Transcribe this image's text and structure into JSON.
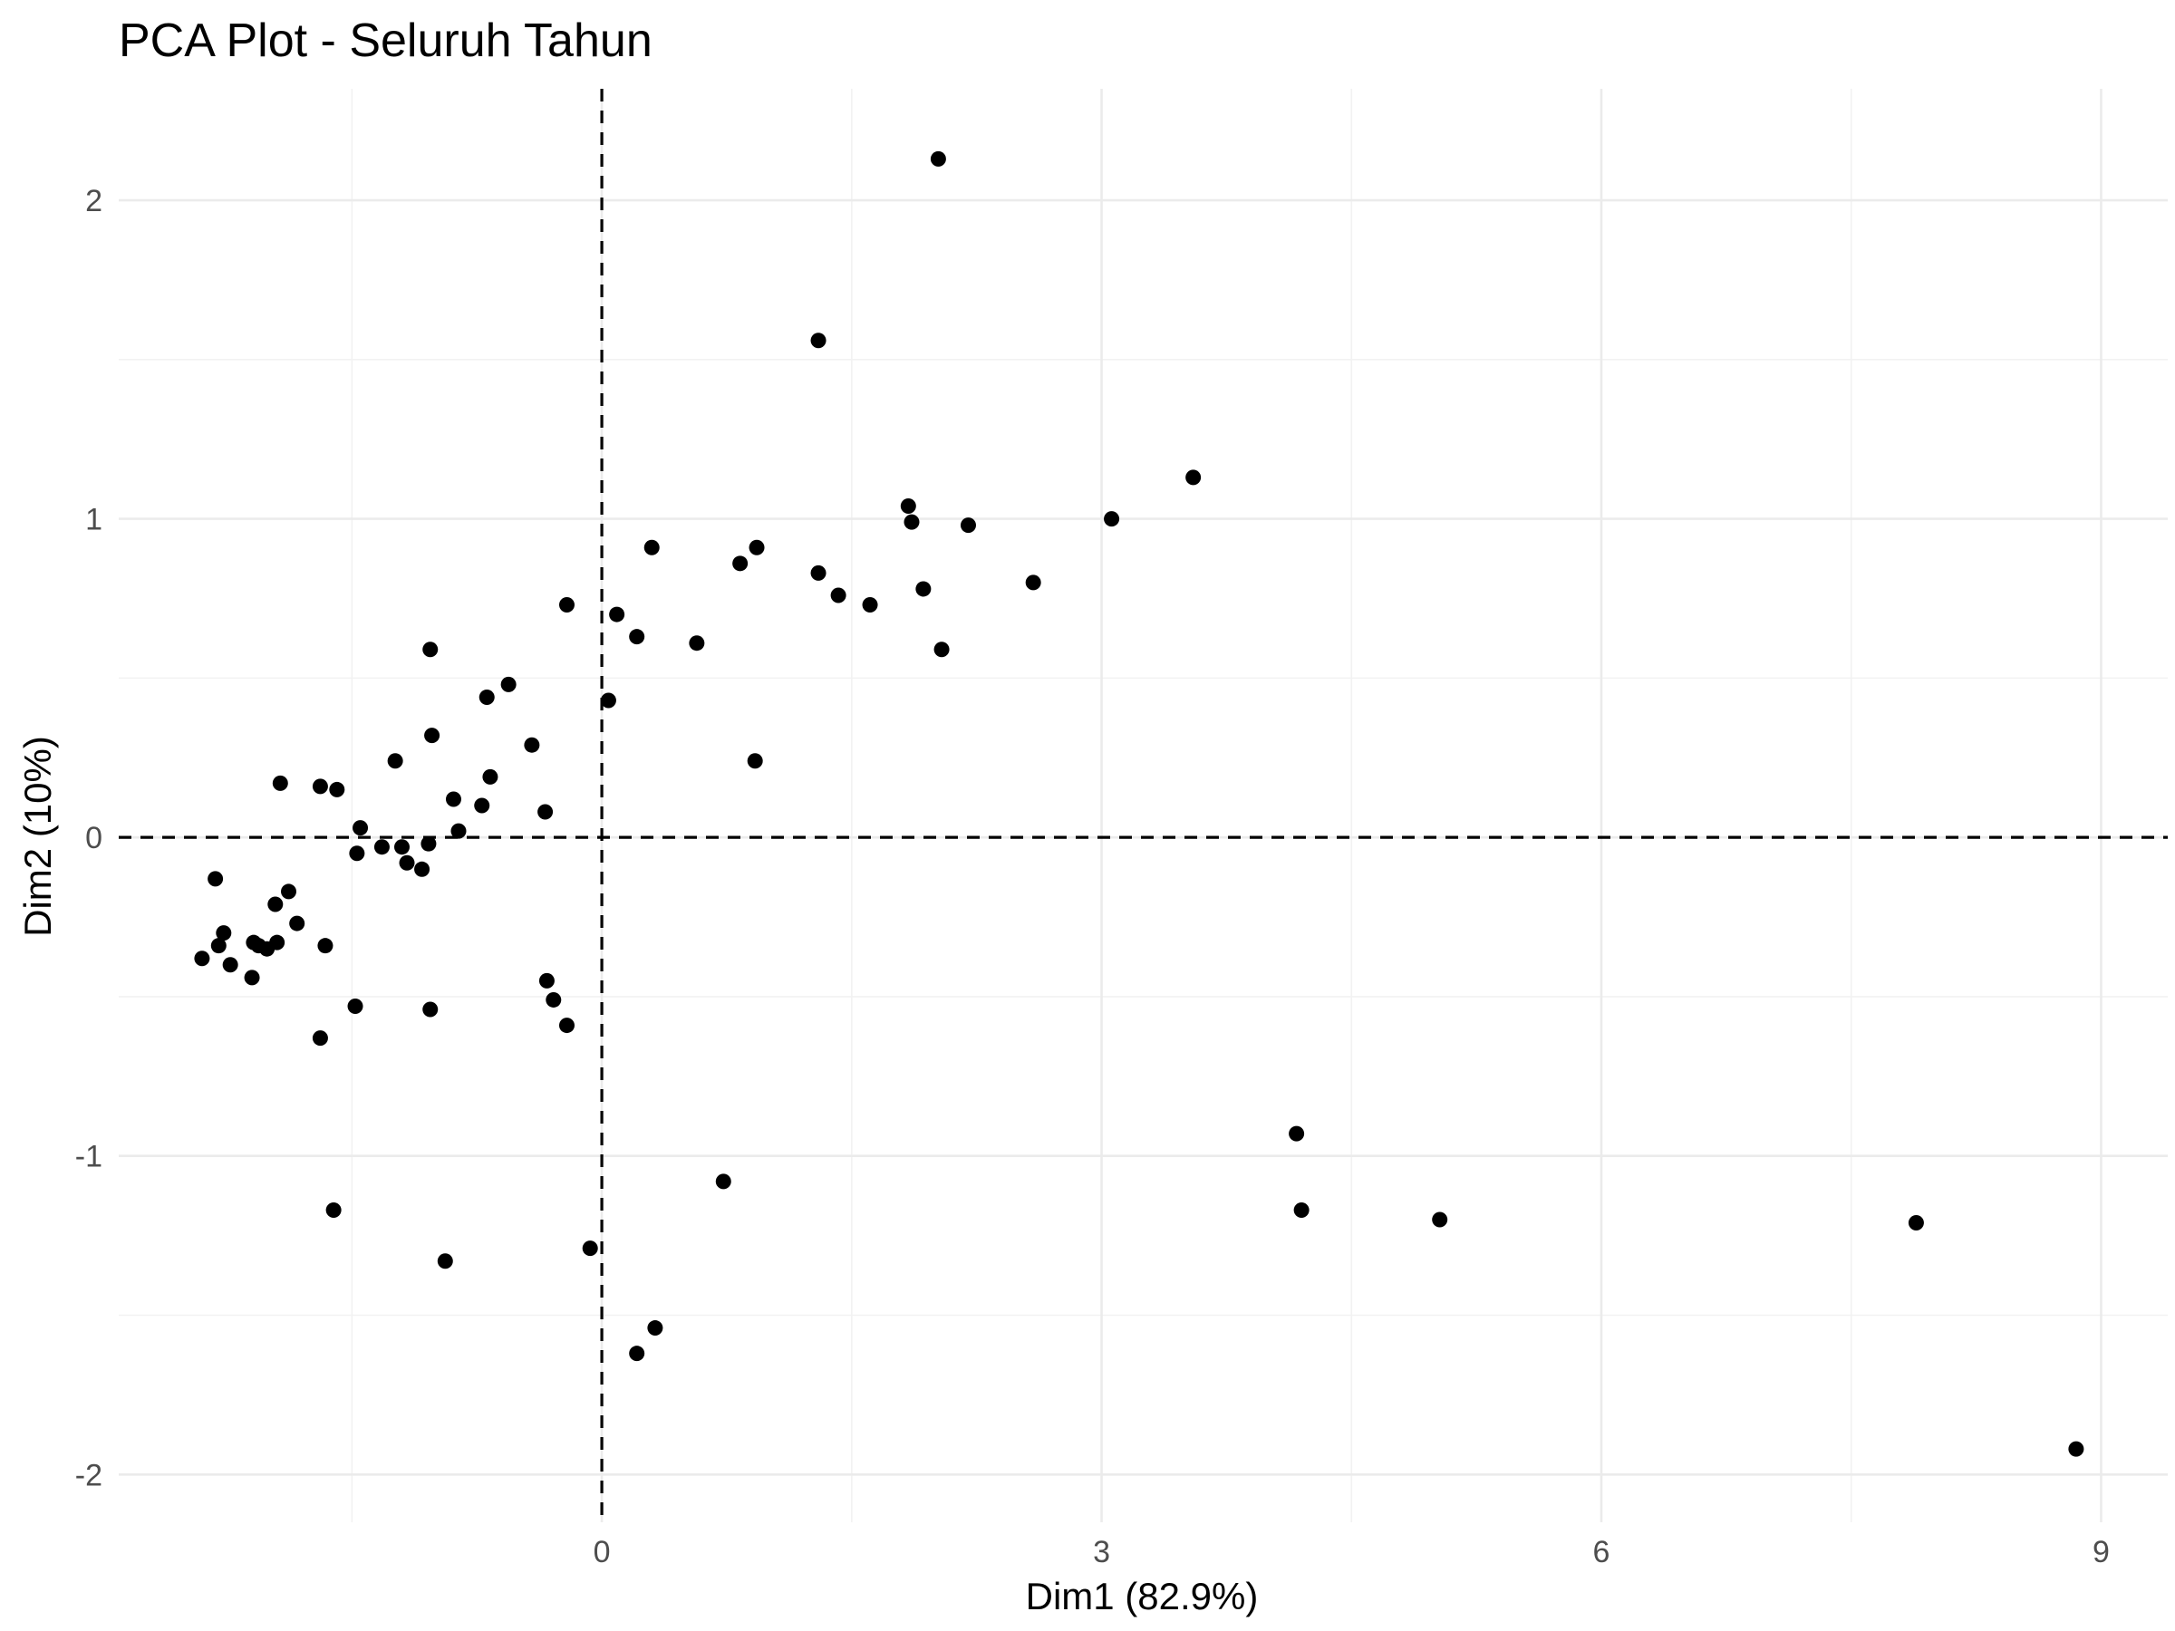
{
  "chart_data": {
    "type": "scatter",
    "title": "PCA Plot - Seluruh Tahun",
    "xlabel": "Dim1 (82.9%)",
    "ylabel": "Dim2 (10%)",
    "xlim": [
      -2.9,
      9.4
    ],
    "ylim": [
      -2.15,
      2.35
    ],
    "x_ticks": [
      0,
      3,
      6,
      9
    ],
    "x_tick_labels": [
      "0",
      "3",
      "6",
      "9"
    ],
    "x_minor_ticks": [
      -1.5,
      1.5,
      4.5,
      7.5
    ],
    "y_ticks": [
      -2,
      -1,
      0,
      1,
      2
    ],
    "y_tick_labels": [
      "-2",
      "-1",
      "0",
      "1",
      "2"
    ],
    "y_minor_ticks": [
      -1.5,
      -0.5,
      0.5,
      1.5
    ],
    "reference_lines": {
      "x": 0,
      "y": 0
    },
    "grid": true,
    "point_color": "#000000",
    "points": [
      {
        "x": 2.02,
        "y": 2.13
      },
      {
        "x": 1.3,
        "y": 1.56
      },
      {
        "x": 3.55,
        "y": 1.13
      },
      {
        "x": 1.84,
        "y": 1.04
      },
      {
        "x": 1.86,
        "y": 0.99
      },
      {
        "x": 3.06,
        "y": 1.0
      },
      {
        "x": 2.2,
        "y": 0.98
      },
      {
        "x": 0.3,
        "y": 0.91
      },
      {
        "x": 0.93,
        "y": 0.91
      },
      {
        "x": 0.83,
        "y": 0.86
      },
      {
        "x": 1.3,
        "y": 0.83
      },
      {
        "x": 2.59,
        "y": 0.8
      },
      {
        "x": 1.93,
        "y": 0.78
      },
      {
        "x": 1.42,
        "y": 0.76
      },
      {
        "x": -0.21,
        "y": 0.73
      },
      {
        "x": 1.61,
        "y": 0.73
      },
      {
        "x": 0.09,
        "y": 0.7
      },
      {
        "x": 0.21,
        "y": 0.63
      },
      {
        "x": 0.57,
        "y": 0.61
      },
      {
        "x": -1.03,
        "y": 0.59
      },
      {
        "x": 2.04,
        "y": 0.59
      },
      {
        "x": -0.56,
        "y": 0.48
      },
      {
        "x": -0.69,
        "y": 0.44
      },
      {
        "x": 0.04,
        "y": 0.43
      },
      {
        "x": -1.02,
        "y": 0.32
      },
      {
        "x": -0.42,
        "y": 0.29
      },
      {
        "x": 0.92,
        "y": 0.24
      },
      {
        "x": -1.24,
        "y": 0.24
      },
      {
        "x": -0.67,
        "y": 0.19
      },
      {
        "x": -1.93,
        "y": 0.17
      },
      {
        "x": -1.69,
        "y": 0.16
      },
      {
        "x": -1.59,
        "y": 0.15
      },
      {
        "x": -0.89,
        "y": 0.12
      },
      {
        "x": -0.72,
        "y": 0.1
      },
      {
        "x": -0.34,
        "y": 0.08
      },
      {
        "x": -1.45,
        "y": 0.03
      },
      {
        "x": -0.86,
        "y": 0.02
      },
      {
        "x": -1.04,
        "y": -0.02
      },
      {
        "x": -1.32,
        "y": -0.03
      },
      {
        "x": -1.2,
        "y": -0.03
      },
      {
        "x": -1.47,
        "y": -0.05
      },
      {
        "x": -1.17,
        "y": -0.08
      },
      {
        "x": -1.08,
        "y": -0.1
      },
      {
        "x": -2.32,
        "y": -0.13
      },
      {
        "x": -1.88,
        "y": -0.17
      },
      {
        "x": -1.96,
        "y": -0.21
      },
      {
        "x": -1.83,
        "y": -0.27
      },
      {
        "x": -2.27,
        "y": -0.3
      },
      {
        "x": -2.09,
        "y": -0.33
      },
      {
        "x": -1.95,
        "y": -0.33
      },
      {
        "x": -2.3,
        "y": -0.34
      },
      {
        "x": -2.06,
        "y": -0.34
      },
      {
        "x": -2.01,
        "y": -0.35
      },
      {
        "x": -1.66,
        "y": -0.34
      },
      {
        "x": -2.4,
        "y": -0.38
      },
      {
        "x": -2.23,
        "y": -0.4
      },
      {
        "x": -2.1,
        "y": -0.44
      },
      {
        "x": -0.33,
        "y": -0.45
      },
      {
        "x": -0.29,
        "y": -0.51
      },
      {
        "x": -1.48,
        "y": -0.53
      },
      {
        "x": -1.03,
        "y": -0.54
      },
      {
        "x": -0.21,
        "y": -0.59
      },
      {
        "x": -1.69,
        "y": -0.63
      },
      {
        "x": 4.17,
        "y": -0.93
      },
      {
        "x": 0.73,
        "y": -1.08
      },
      {
        "x": 4.2,
        "y": -1.17
      },
      {
        "x": -1.61,
        "y": -1.17
      },
      {
        "x": 5.03,
        "y": -1.2
      },
      {
        "x": 7.89,
        "y": -1.21
      },
      {
        "x": -0.07,
        "y": -1.29
      },
      {
        "x": -0.94,
        "y": -1.33
      },
      {
        "x": 0.32,
        "y": -1.54
      },
      {
        "x": 0.21,
        "y": -1.62
      },
      {
        "x": 8.85,
        "y": -1.92
      }
    ]
  }
}
